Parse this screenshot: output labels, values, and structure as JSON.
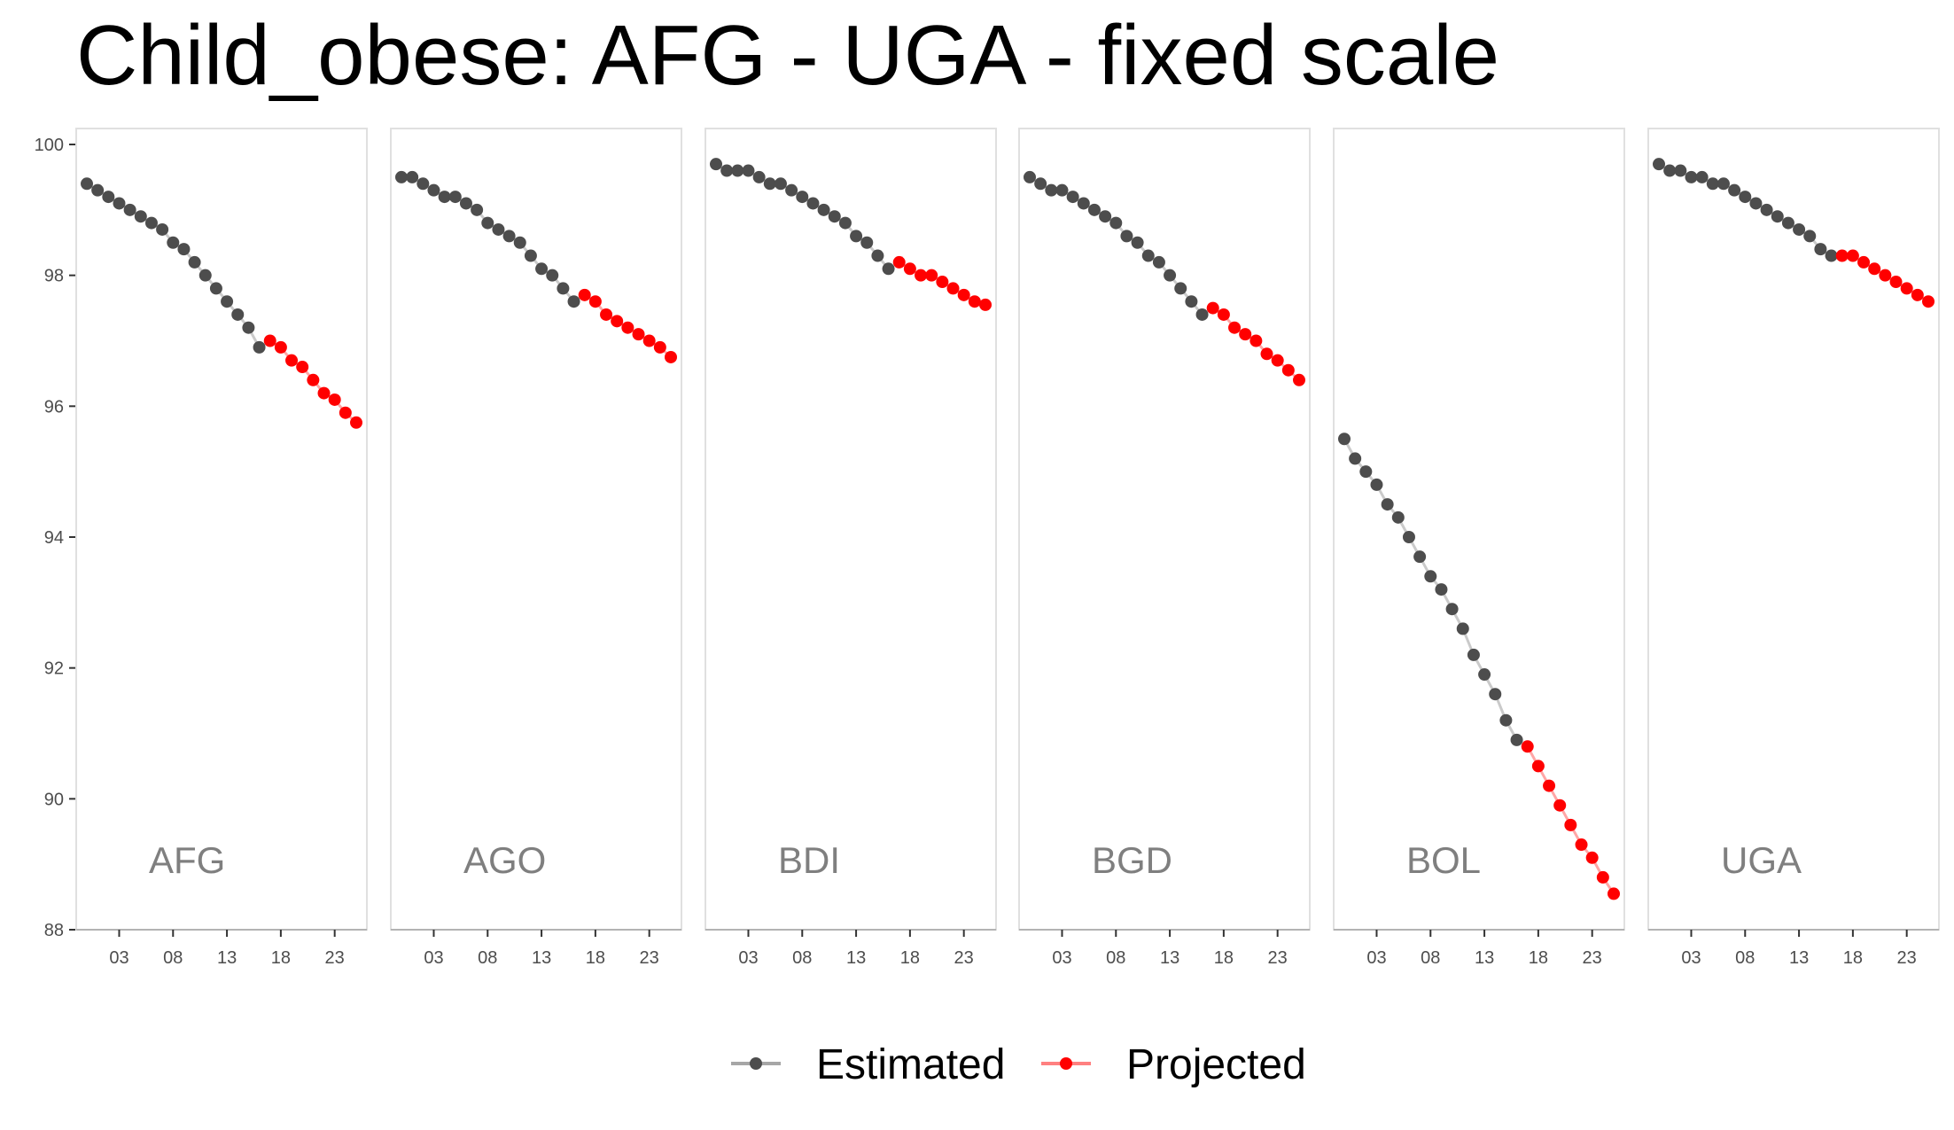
{
  "title": "Child_obese: AFG - UGA - fixed scale",
  "chart_data": {
    "type": "line",
    "facet_layout": "1 row x 6 columns, shared y axis",
    "ylim": [
      88,
      100
    ],
    "y_ticks": [
      88,
      90,
      92,
      94,
      96,
      98,
      100
    ],
    "xlim": [
      2000,
      2025
    ],
    "x_ticks": [
      2003,
      2008,
      2013,
      2018,
      2023
    ],
    "x_tick_labels": [
      "03",
      "08",
      "13",
      "18",
      "23"
    ],
    "grid": false,
    "legend_position": "bottom",
    "colors": {
      "Estimated": "#4d4d4d",
      "Projected": "#ff0000",
      "Estimated_line": "#a6a6a6",
      "Projected_line": "#ff8080"
    },
    "legend": [
      "Estimated",
      "Projected"
    ],
    "panels": [
      {
        "label": "AFG",
        "estimated": {
          "x": [
            2000,
            2001,
            2002,
            2003,
            2004,
            2005,
            2006,
            2007,
            2008,
            2009,
            2010,
            2011,
            2012,
            2013,
            2014,
            2015,
            2016
          ],
          "y": [
            99.4,
            99.3,
            99.2,
            99.1,
            99.0,
            98.9,
            98.8,
            98.7,
            98.5,
            98.4,
            98.2,
            98.0,
            97.8,
            97.6,
            97.4,
            97.2,
            96.9
          ]
        },
        "projected": {
          "x": [
            2017,
            2018,
            2019,
            2020,
            2021,
            2022,
            2023,
            2024,
            2025
          ],
          "y": [
            97.0,
            96.9,
            96.7,
            96.6,
            96.4,
            96.2,
            96.1,
            95.9,
            95.75
          ]
        }
      },
      {
        "label": "AGO",
        "estimated": {
          "x": [
            2000,
            2001,
            2002,
            2003,
            2004,
            2005,
            2006,
            2007,
            2008,
            2009,
            2010,
            2011,
            2012,
            2013,
            2014,
            2015,
            2016
          ],
          "y": [
            99.5,
            99.5,
            99.4,
            99.3,
            99.2,
            99.2,
            99.1,
            99.0,
            98.8,
            98.7,
            98.6,
            98.5,
            98.3,
            98.1,
            98.0,
            97.8,
            97.6
          ]
        },
        "projected": {
          "x": [
            2017,
            2018,
            2019,
            2020,
            2021,
            2022,
            2023,
            2024,
            2025
          ],
          "y": [
            97.7,
            97.6,
            97.4,
            97.3,
            97.2,
            97.1,
            97.0,
            96.9,
            96.75
          ]
        }
      },
      {
        "label": "BDI",
        "estimated": {
          "x": [
            2000,
            2001,
            2002,
            2003,
            2004,
            2005,
            2006,
            2007,
            2008,
            2009,
            2010,
            2011,
            2012,
            2013,
            2014,
            2015,
            2016
          ],
          "y": [
            99.7,
            99.6,
            99.6,
            99.6,
            99.5,
            99.4,
            99.4,
            99.3,
            99.2,
            99.1,
            99.0,
            98.9,
            98.8,
            98.6,
            98.5,
            98.3,
            98.1
          ]
        },
        "projected": {
          "x": [
            2017,
            2018,
            2019,
            2020,
            2021,
            2022,
            2023,
            2024,
            2025
          ],
          "y": [
            98.2,
            98.1,
            98.0,
            98.0,
            97.9,
            97.8,
            97.7,
            97.6,
            97.55
          ]
        }
      },
      {
        "label": "BGD",
        "estimated": {
          "x": [
            2000,
            2001,
            2002,
            2003,
            2004,
            2005,
            2006,
            2007,
            2008,
            2009,
            2010,
            2011,
            2012,
            2013,
            2014,
            2015,
            2016
          ],
          "y": [
            99.5,
            99.4,
            99.3,
            99.3,
            99.2,
            99.1,
            99.0,
            98.9,
            98.8,
            98.6,
            98.5,
            98.3,
            98.2,
            98.0,
            97.8,
            97.6,
            97.4
          ]
        },
        "projected": {
          "x": [
            2017,
            2018,
            2019,
            2020,
            2021,
            2022,
            2023,
            2024,
            2025
          ],
          "y": [
            97.5,
            97.4,
            97.2,
            97.1,
            97.0,
            96.8,
            96.7,
            96.55,
            96.4
          ]
        }
      },
      {
        "label": "BOL",
        "estimated": {
          "x": [
            2000,
            2001,
            2002,
            2003,
            2004,
            2005,
            2006,
            2007,
            2008,
            2009,
            2010,
            2011,
            2012,
            2013,
            2014,
            2015,
            2016
          ],
          "y": [
            95.5,
            95.2,
            95.0,
            94.8,
            94.5,
            94.3,
            94.0,
            93.7,
            93.4,
            93.2,
            92.9,
            92.6,
            92.2,
            91.9,
            91.6,
            91.2,
            90.9
          ]
        },
        "projected": {
          "x": [
            2017,
            2018,
            2019,
            2020,
            2021,
            2022,
            2023,
            2024,
            2025
          ],
          "y": [
            90.8,
            90.5,
            90.2,
            89.9,
            89.6,
            89.3,
            89.1,
            88.8,
            88.55
          ]
        }
      },
      {
        "label": "UGA",
        "estimated": {
          "x": [
            2000,
            2001,
            2002,
            2003,
            2004,
            2005,
            2006,
            2007,
            2008,
            2009,
            2010,
            2011,
            2012,
            2013,
            2014,
            2015,
            2016
          ],
          "y": [
            99.7,
            99.6,
            99.6,
            99.5,
            99.5,
            99.4,
            99.4,
            99.3,
            99.2,
            99.1,
            99.0,
            98.9,
            98.8,
            98.7,
            98.6,
            98.4,
            98.3
          ]
        },
        "projected": {
          "x": [
            2017,
            2018,
            2019,
            2020,
            2021,
            2022,
            2023,
            2024,
            2025
          ],
          "y": [
            98.3,
            98.3,
            98.2,
            98.1,
            98.0,
            97.9,
            97.8,
            97.7,
            97.6
          ]
        }
      }
    ]
  }
}
